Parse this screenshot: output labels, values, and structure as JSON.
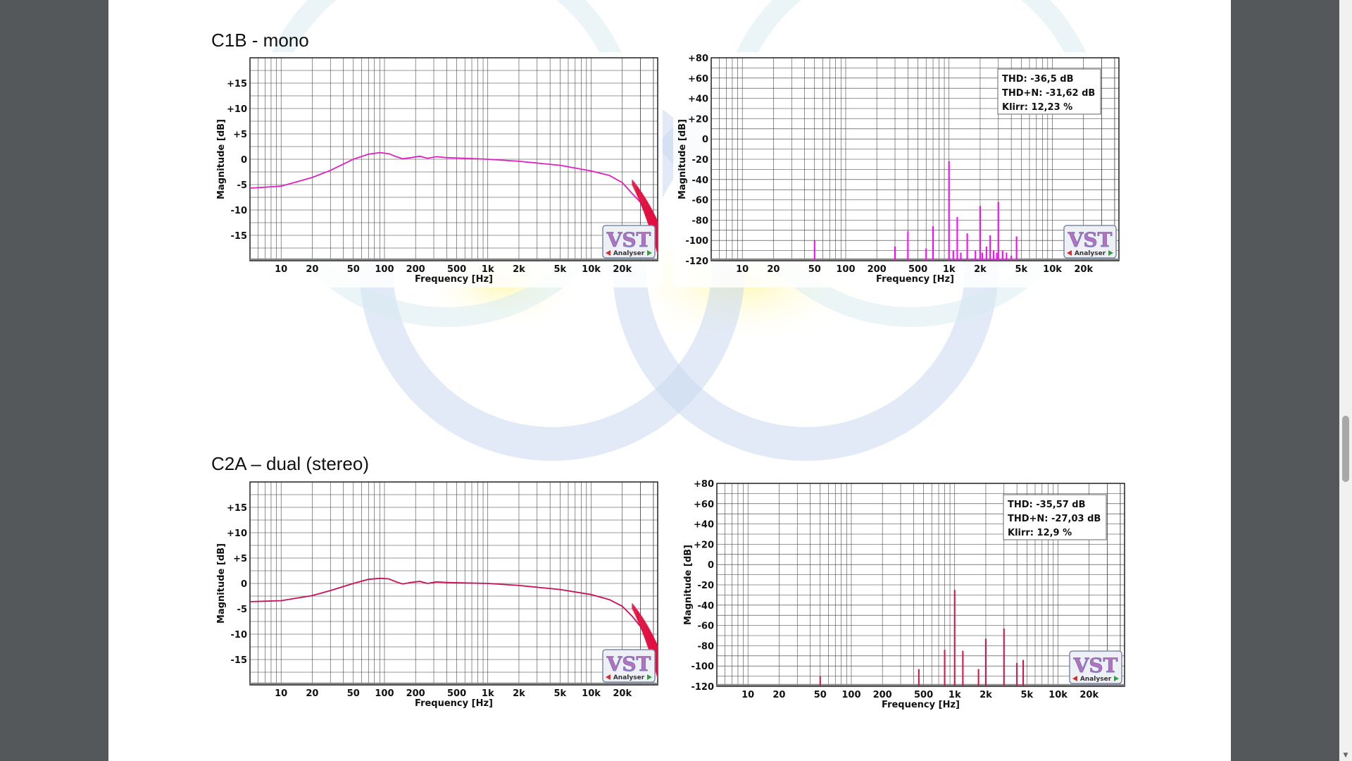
{
  "sections": [
    {
      "title": "C1B - mono"
    },
    {
      "title": "C2A – dual (stereo)"
    }
  ],
  "chart_data": [
    {
      "type": "line",
      "section": "C1B - mono",
      "xlabel": "Frequency [Hz]",
      "ylabel": "Magnitude [dB]",
      "x_scale": "log",
      "xlim": [
        5,
        44000
      ],
      "ylim": [
        -20,
        20
      ],
      "x_ticks": [
        10,
        20,
        50,
        100,
        200,
        500,
        1000,
        2000,
        5000,
        10000,
        20000
      ],
      "x_tick_labels": [
        "10",
        "20",
        "50",
        "100",
        "200",
        "500",
        "1k",
        "2k",
        "5k",
        "10k",
        "20k"
      ],
      "y_ticks": [
        15,
        10,
        5,
        0,
        -5,
        -10,
        -15
      ],
      "y_tick_labels": [
        "+15",
        "+10",
        "+5",
        "0",
        "-5",
        "-10",
        "-15"
      ],
      "grid": true,
      "series": [
        {
          "color": "#e020c0",
          "x": [
            5,
            10,
            20,
            30,
            50,
            70,
            90,
            110,
            130,
            150,
            180,
            220,
            260,
            320,
            400,
            600,
            1000,
            2000,
            5000,
            10000,
            15000,
            20000,
            25000,
            30000,
            35000,
            40000,
            44000
          ],
          "y": [
            -5.7,
            -5.3,
            -3.6,
            -2.2,
            0.0,
            1.0,
            1.3,
            1.1,
            0.5,
            0.1,
            0.3,
            0.6,
            0.2,
            0.5,
            0.3,
            0.2,
            0.0,
            -0.4,
            -1.2,
            -2.3,
            -3.2,
            -4.6,
            -6.8,
            -8.5,
            -10.5,
            -12.5,
            -15.5
          ]
        }
      ],
      "logo": {
        "text": "VST",
        "subtext": "Analyser"
      }
    },
    {
      "type": "bar",
      "section": "C1B - mono",
      "xlabel": "Frequency [Hz]",
      "ylabel": "Magnitude [dB]",
      "x_scale": "log",
      "xlim": [
        5,
        44000
      ],
      "ylim": [
        -120,
        80
      ],
      "x_ticks": [
        10,
        20,
        50,
        100,
        200,
        500,
        1000,
        2000,
        5000,
        10000,
        20000
      ],
      "x_tick_labels": [
        "10",
        "20",
        "50",
        "100",
        "200",
        "500",
        "1k",
        "2k",
        "5k",
        "10k",
        "20k"
      ],
      "y_ticks": [
        80,
        60,
        40,
        20,
        0,
        -20,
        -40,
        -60,
        -80,
        -100,
        -120
      ],
      "y_tick_labels": [
        "+80",
        "+60",
        "+40",
        "+20",
        "0",
        "-20",
        "-40",
        "-60",
        "-80",
        "-100",
        "-120"
      ],
      "grid": true,
      "series": [
        {
          "color": "#ff00ff",
          "x": [
            50,
            300,
            400,
            600,
            700,
            1000,
            1100,
            1200,
            1300,
            1500,
            1700,
            1800,
            2000,
            2100,
            2300,
            2500,
            2700,
            2900,
            3000,
            3300,
            3600,
            4000,
            4500
          ],
          "y": [
            -100,
            -106,
            -91,
            -108,
            -86,
            -22,
            -110,
            -77,
            -112,
            -93,
            -118,
            -110,
            -66,
            -112,
            -106,
            -95,
            -110,
            -112,
            -62,
            -110,
            -112,
            -115,
            -96
          ]
        }
      ],
      "stats": [
        {
          "label": "THD:",
          "value": "-36,5 dB"
        },
        {
          "label": "THD+N:",
          "value": "-31,62 dB"
        },
        {
          "label": "Klirr:",
          "value": "12,23 %"
        }
      ],
      "logo": {
        "text": "VST",
        "subtext": "Analyser"
      }
    },
    {
      "type": "line",
      "section": "C2A – dual (stereo)",
      "xlabel": "Frequency [Hz]",
      "ylabel": "Magnitude [dB]",
      "x_scale": "log",
      "xlim": [
        5,
        44000
      ],
      "ylim": [
        -20,
        20
      ],
      "x_ticks": [
        10,
        20,
        50,
        100,
        200,
        500,
        1000,
        2000,
        5000,
        10000,
        20000
      ],
      "x_tick_labels": [
        "10",
        "20",
        "50",
        "100",
        "200",
        "500",
        "1k",
        "2k",
        "5k",
        "10k",
        "20k"
      ],
      "y_ticks": [
        15,
        10,
        5,
        0,
        -5,
        -10,
        -15
      ],
      "y_tick_labels": [
        "+15",
        "+10",
        "+5",
        "0",
        "-5",
        "-10",
        "-15"
      ],
      "grid": true,
      "series": [
        {
          "color": "#c8105a",
          "x": [
            5,
            10,
            20,
            30,
            50,
            70,
            90,
            110,
            130,
            150,
            180,
            220,
            260,
            320,
            400,
            600,
            1000,
            2000,
            5000,
            10000,
            15000,
            20000,
            25000,
            30000,
            35000,
            40000,
            44000
          ],
          "y": [
            -3.6,
            -3.4,
            -2.4,
            -1.4,
            0.0,
            0.8,
            1.0,
            0.9,
            0.3,
            -0.1,
            0.2,
            0.4,
            0.0,
            0.3,
            0.2,
            0.1,
            0.0,
            -0.4,
            -1.2,
            -2.2,
            -3.2,
            -4.5,
            -6.5,
            -8.5,
            -10.8,
            -13.0,
            -15.5
          ]
        }
      ],
      "logo": {
        "text": "VST",
        "subtext": "Analyser"
      }
    },
    {
      "type": "bar",
      "section": "C2A – dual (stereo)",
      "xlabel": "Frequency [Hz]",
      "ylabel": "Magnitude [dB]",
      "x_scale": "log",
      "xlim": [
        5,
        44000
      ],
      "ylim": [
        -120,
        80
      ],
      "x_ticks": [
        10,
        20,
        50,
        100,
        200,
        500,
        1000,
        2000,
        5000,
        10000,
        20000
      ],
      "x_tick_labels": [
        "10",
        "20",
        "50",
        "100",
        "200",
        "500",
        "1k",
        "2k",
        "5k",
        "10k",
        "20k"
      ],
      "y_ticks": [
        80,
        60,
        40,
        20,
        0,
        -20,
        -40,
        -60,
        -80,
        -100,
        -120
      ],
      "y_tick_labels": [
        "+80",
        "+60",
        "+40",
        "+20",
        "0",
        "-20",
        "-40",
        "-60",
        "-80",
        "-100",
        "-120"
      ],
      "grid": true,
      "series": [
        {
          "color": "#d0104a",
          "x": [
            50,
            450,
            800,
            1000,
            1200,
            1700,
            2000,
            3000,
            4000,
            4600
          ],
          "y": [
            -110,
            -103,
            -84,
            -25,
            -85,
            -103,
            -73,
            -63,
            -97,
            -94
          ]
        }
      ],
      "stats": [
        {
          "label": "THD:",
          "value": "-35,57 dB"
        },
        {
          "label": "THD+N:",
          "value": "-27,03 dB"
        },
        {
          "label": "Klirr:",
          "value": "12,9 %"
        }
      ],
      "logo": {
        "text": "VST",
        "subtext": "Analyser"
      }
    }
  ]
}
